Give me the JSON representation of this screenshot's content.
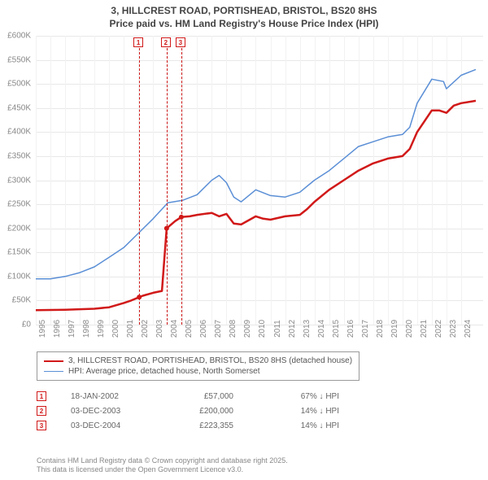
{
  "title_line1": "3, HILLCREST ROAD, PORTISHEAD, BRISTOL, BS20 8HS",
  "title_line2": "Price paid vs. HM Land Registry's House Price Index (HPI)",
  "chart": {
    "type": "line",
    "background_color": "#ffffff",
    "grid_color": "#e8e8e8",
    "axis_label_color": "#888888",
    "axis_fontsize": 10,
    "ylim": [
      0,
      600000
    ],
    "ytick_step": 50000,
    "ylabels": [
      "£0",
      "£50K",
      "£100K",
      "£150K",
      "£200K",
      "£250K",
      "£300K",
      "£350K",
      "£400K",
      "£450K",
      "£500K",
      "£550K",
      "£600K"
    ],
    "xlim": [
      1995,
      2025.5
    ],
    "xticks": [
      1995,
      1996,
      1997,
      1998,
      1999,
      2000,
      2001,
      2002,
      2003,
      2004,
      2005,
      2006,
      2007,
      2008,
      2009,
      2010,
      2011,
      2012,
      2013,
      2014,
      2015,
      2016,
      2017,
      2018,
      2019,
      2020,
      2021,
      2022,
      2023,
      2024
    ],
    "series_red": {
      "color": "#d11919",
      "width": 2.5,
      "points": [
        [
          1995,
          30000
        ],
        [
          1997,
          31000
        ],
        [
          1999,
          33000
        ],
        [
          2000,
          36000
        ],
        [
          2001,
          45000
        ],
        [
          2001.5,
          50000
        ],
        [
          2002.05,
          57000
        ],
        [
          2002.3,
          60000
        ],
        [
          2003,
          66000
        ],
        [
          2003.6,
          70000
        ],
        [
          2003.92,
          200000
        ],
        [
          2004.5,
          215000
        ],
        [
          2004.92,
          223355
        ],
        [
          2005.5,
          225000
        ],
        [
          2006,
          228000
        ],
        [
          2007,
          232000
        ],
        [
          2007.5,
          225000
        ],
        [
          2008,
          230000
        ],
        [
          2008.5,
          210000
        ],
        [
          2009,
          208000
        ],
        [
          2010,
          225000
        ],
        [
          2010.5,
          220000
        ],
        [
          2011,
          218000
        ],
        [
          2012,
          225000
        ],
        [
          2013,
          228000
        ],
        [
          2013.5,
          240000
        ],
        [
          2014,
          255000
        ],
        [
          2015,
          280000
        ],
        [
          2016,
          300000
        ],
        [
          2017,
          320000
        ],
        [
          2018,
          335000
        ],
        [
          2019,
          345000
        ],
        [
          2020,
          350000
        ],
        [
          2020.5,
          365000
        ],
        [
          2021,
          400000
        ],
        [
          2022,
          445000
        ],
        [
          2022.5,
          445000
        ],
        [
          2023,
          440000
        ],
        [
          2023.5,
          455000
        ],
        [
          2024,
          460000
        ],
        [
          2025,
          465000
        ]
      ]
    },
    "series_blue": {
      "color": "#5b8fd6",
      "width": 1.5,
      "points": [
        [
          1995,
          95000
        ],
        [
          1996,
          95000
        ],
        [
          1997,
          100000
        ],
        [
          1998,
          108000
        ],
        [
          1999,
          120000
        ],
        [
          2000,
          140000
        ],
        [
          2001,
          160000
        ],
        [
          2002,
          190000
        ],
        [
          2003,
          220000
        ],
        [
          2004,
          253000
        ],
        [
          2005,
          258000
        ],
        [
          2006,
          270000
        ],
        [
          2007,
          300000
        ],
        [
          2007.5,
          310000
        ],
        [
          2008,
          295000
        ],
        [
          2008.5,
          265000
        ],
        [
          2009,
          255000
        ],
        [
          2010,
          280000
        ],
        [
          2011,
          268000
        ],
        [
          2012,
          265000
        ],
        [
          2013,
          275000
        ],
        [
          2014,
          300000
        ],
        [
          2015,
          320000
        ],
        [
          2016,
          345000
        ],
        [
          2017,
          370000
        ],
        [
          2018,
          380000
        ],
        [
          2019,
          390000
        ],
        [
          2020,
          395000
        ],
        [
          2020.5,
          410000
        ],
        [
          2021,
          460000
        ],
        [
          2022,
          510000
        ],
        [
          2022.8,
          505000
        ],
        [
          2023,
          490000
        ],
        [
          2024,
          518000
        ],
        [
          2025,
          530000
        ]
      ]
    },
    "sale_points": {
      "color": "#d11919",
      "marker_radius": 3,
      "points": [
        [
          2002.05,
          57000
        ],
        [
          2003.92,
          200000
        ],
        [
          2004.92,
          223355
        ]
      ]
    },
    "markers": [
      {
        "num": "1",
        "x": 2002.05
      },
      {
        "num": "2",
        "x": 2003.92
      },
      {
        "num": "3",
        "x": 2004.92
      }
    ]
  },
  "legend": {
    "items": [
      {
        "color": "#d11919",
        "width": 2.5,
        "label": "3, HILLCREST ROAD, PORTISHEAD, BRISTOL, BS20 8HS (detached house)"
      },
      {
        "color": "#5b8fd6",
        "width": 1.5,
        "label": "HPI: Average price, detached house, North Somerset"
      }
    ]
  },
  "table": {
    "rows": [
      {
        "num": "1",
        "date": "18-JAN-2002",
        "price": "£57,000",
        "hpi": "67% ↓ HPI"
      },
      {
        "num": "2",
        "date": "03-DEC-2003",
        "price": "£200,000",
        "hpi": "14% ↓ HPI"
      },
      {
        "num": "3",
        "date": "03-DEC-2004",
        "price": "£223,355",
        "hpi": "14% ↓ HPI"
      }
    ]
  },
  "footer_line1": "Contains HM Land Registry data © Crown copyright and database right 2025.",
  "footer_line2": "This data is licensed under the Open Government Licence v3.0."
}
